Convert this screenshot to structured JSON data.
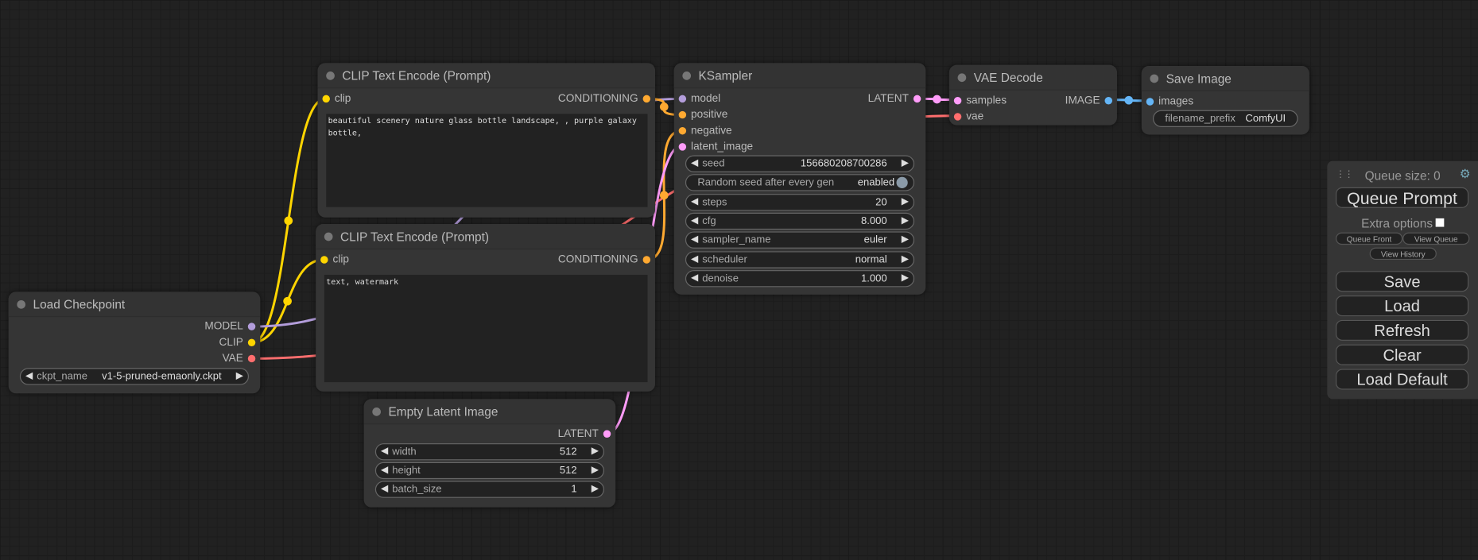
{
  "colors": {
    "clip": "#FFD500",
    "model": "#B39DDB",
    "vae": "#FF6E6E",
    "conditioning": "#FFA931",
    "latent": "#FF9CF9",
    "image": "#64B5F6"
  },
  "nodes": {
    "clip1": {
      "title": "CLIP Text Encode (Prompt)",
      "inputs": [
        {
          "label": "clip",
          "type": "clip"
        }
      ],
      "outputs": [
        {
          "label": "CONDITIONING",
          "type": "conditioning"
        }
      ],
      "text": "beautiful scenery nature glass bottle landscape, , purple galaxy bottle,"
    },
    "clip2": {
      "title": "CLIP Text Encode (Prompt)",
      "inputs": [
        {
          "label": "clip",
          "type": "clip"
        }
      ],
      "outputs": [
        {
          "label": "CONDITIONING",
          "type": "conditioning"
        }
      ],
      "text": "text, watermark"
    },
    "ckpt": {
      "title": "Load Checkpoint",
      "inputs": [],
      "outputs": [
        {
          "label": "MODEL",
          "type": "model"
        },
        {
          "label": "CLIP",
          "type": "clip"
        },
        {
          "label": "VAE",
          "type": "vae"
        }
      ],
      "widgets": [
        {
          "name": "ckpt_name",
          "value": "v1-5-pruned-emaonly.ckpt",
          "kind": "combo"
        }
      ]
    },
    "latent": {
      "title": "Empty Latent Image",
      "inputs": [],
      "outputs": [
        {
          "label": "LATENT",
          "type": "latent"
        }
      ],
      "widgets": [
        {
          "name": "width",
          "value": "512",
          "kind": "number"
        },
        {
          "name": "height",
          "value": "512",
          "kind": "number"
        },
        {
          "name": "batch_size",
          "value": "1",
          "kind": "number"
        }
      ]
    },
    "ksampler": {
      "title": "KSampler",
      "inputs": [
        {
          "label": "model",
          "type": "model"
        },
        {
          "label": "positive",
          "type": "conditioning"
        },
        {
          "label": "negative",
          "type": "conditioning"
        },
        {
          "label": "latent_image",
          "type": "latent"
        }
      ],
      "outputs": [
        {
          "label": "LATENT",
          "type": "latent"
        }
      ],
      "widgets": [
        {
          "name": "seed",
          "value": "156680208700286",
          "kind": "number"
        },
        {
          "name": "Random seed after every gen",
          "value": "enabled",
          "kind": "toggle"
        },
        {
          "name": "steps",
          "value": "20",
          "kind": "number"
        },
        {
          "name": "cfg",
          "value": "8.000",
          "kind": "number"
        },
        {
          "name": "sampler_name",
          "value": "euler",
          "kind": "combo"
        },
        {
          "name": "scheduler",
          "value": "normal",
          "kind": "combo"
        },
        {
          "name": "denoise",
          "value": "1.000",
          "kind": "number"
        }
      ]
    },
    "vaedecode": {
      "title": "VAE Decode",
      "inputs": [
        {
          "label": "samples",
          "type": "latent"
        },
        {
          "label": "vae",
          "type": "vae"
        }
      ],
      "outputs": [
        {
          "label": "IMAGE",
          "type": "image"
        }
      ]
    },
    "save": {
      "title": "Save Image",
      "inputs": [
        {
          "label": "images",
          "type": "image"
        }
      ],
      "outputs": [],
      "widgets": [
        {
          "name": "filename_prefix",
          "value": "ComfyUI",
          "kind": "text"
        }
      ]
    }
  },
  "panel": {
    "queue_size": "Queue size: 0",
    "queue_prompt": "Queue Prompt",
    "extra_options": "Extra options",
    "extra_checked": false,
    "queue_front": "Queue Front",
    "view_queue": "View Queue",
    "view_history": "View History",
    "save": "Save",
    "load": "Load",
    "refresh": "Refresh",
    "clear": "Clear",
    "load_default": "Load Default"
  }
}
